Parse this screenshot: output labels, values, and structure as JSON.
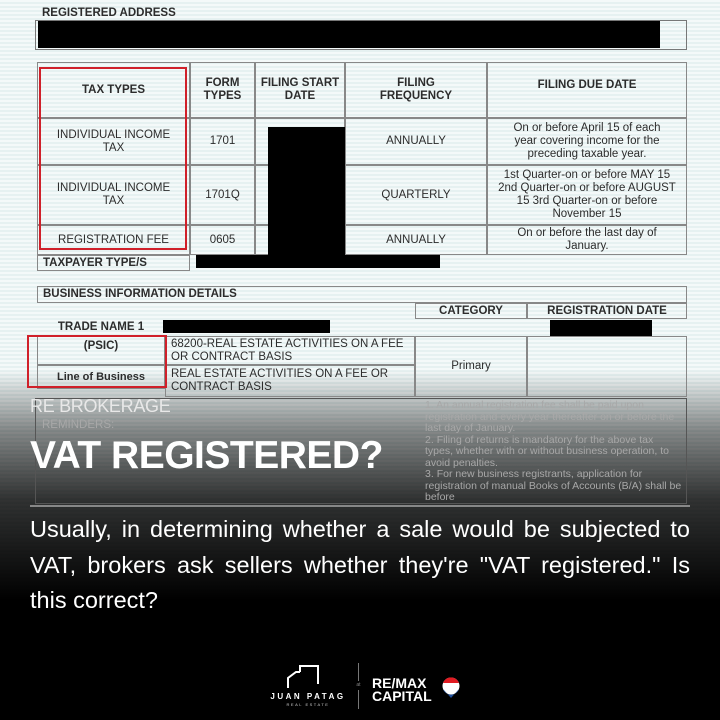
{
  "document": {
    "registered_address_label": "REGISTERED ADDRESS",
    "tax_table": {
      "headers": [
        "TAX TYPES",
        "FORM TYPES",
        "FILING START DATE",
        "FILING FREQUENCY",
        "FILING DUE DATE"
      ],
      "rows": [
        {
          "tax_type": "INDIVIDUAL INCOME TAX",
          "form": "1701",
          "frequency": "ANNUALLY",
          "due": "On or before April 15 of each year covering income for the preceding taxable year."
        },
        {
          "tax_type": "INDIVIDUAL INCOME TAX",
          "form": "1701Q",
          "frequency": "QUARTERLY",
          "due": "1st Quarter-on or before MAY 15 2nd Quarter-on or before AUGUST 15 3rd Quarter-on or before November 15"
        },
        {
          "tax_type": "REGISTRATION FEE",
          "form": "0605",
          "frequency": "ANNUALLY",
          "due": "On or before the last day of January."
        }
      ]
    },
    "taxpayer_type_label": "TAXPAYER TYPE/S",
    "business_info_label": "BUSINESS INFORMATION DETAILS",
    "category_header": "CATEGORY",
    "registration_date_header": "REGISTRATION DATE",
    "trade_name_label": "TRADE NAME 1",
    "psic_label": "(PSIC)",
    "psic_value": "68200-REAL ESTATE ACTIVITIES ON A FEE OR CONTRACT BASIS",
    "line_of_business_label": "Line of Business",
    "line_of_business_value": "REAL ESTATE ACTIVITIES ON A FEE OR CONTRACT BASIS",
    "category_value": "Primary",
    "reminders_label": "REMINDERS:",
    "reminders": [
      {
        "num": "1.",
        "text": "An annual registration fee shall be paid upon registration and every year thereafter on or before the last day of January."
      },
      {
        "num": "2.",
        "text": "Filing of returns is mandatory for the above tax types, whether with or without business operation, to avoid penalties."
      },
      {
        "num": "3.",
        "text": "For new business registrants, application for registration of manual Books of Accounts (B/A) shall be before"
      }
    ]
  },
  "overlay": {
    "kicker": "RE BROKERAGE",
    "title": "VAT REGISTERED?",
    "body": "Usually, in determining whether a sale would be subjected to VAT, brokers ask sellers whether they're \"VAT registered.\" Is this correct?"
  },
  "logos": {
    "left_name": "JUAN PATAG",
    "left_sub": "REAL ESTATE",
    "separator": "at",
    "right_line1": "RE/MAX",
    "right_line2": "CAPITAL"
  },
  "colors": {
    "highlight": "#d0202a",
    "remax_red": "#e11b22",
    "remax_blue": "#1e4f9c"
  }
}
